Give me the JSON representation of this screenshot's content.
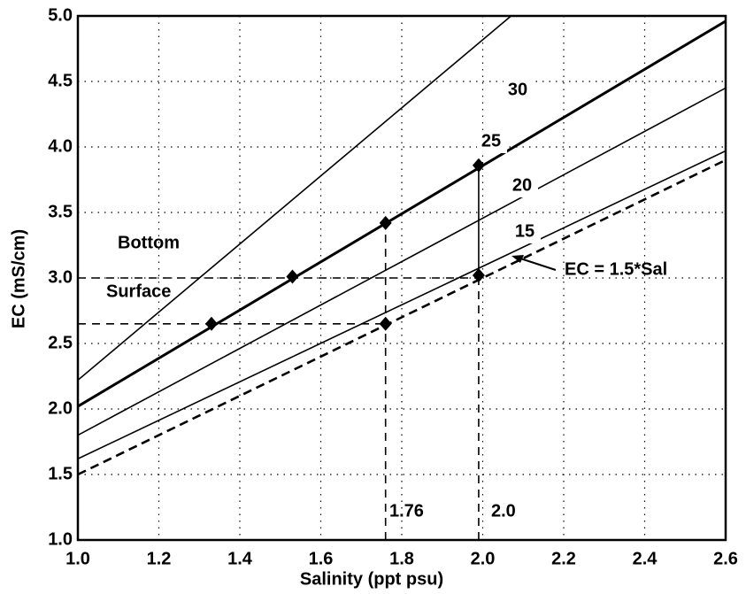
{
  "chart_data": {
    "type": "line",
    "x_label": "Salinity  (ppt psu)",
    "y_label": "EC (mS/cm)",
    "xlim": [
      1.0,
      2.6
    ],
    "ylim": [
      1.0,
      5.0
    ],
    "xticks": [
      {
        "value": 1.0,
        "label": "1.0"
      },
      {
        "value": 1.2,
        "label": "1.2"
      },
      {
        "value": 1.4,
        "label": "1.4"
      },
      {
        "value": 1.6,
        "label": "1.6"
      },
      {
        "value": 1.8,
        "label": "1.8"
      },
      {
        "value": 2.0,
        "label": "2.0"
      },
      {
        "value": 2.2,
        "label": "2.2"
      },
      {
        "value": 2.4,
        "label": "2.4"
      },
      {
        "value": 2.6,
        "label": "2.6"
      }
    ],
    "yticks": [
      {
        "value": 1.0,
        "label": "1.0"
      },
      {
        "value": 1.5,
        "label": "1.5"
      },
      {
        "value": 2.0,
        "label": "2.0"
      },
      {
        "value": 2.5,
        "label": "2.5"
      },
      {
        "value": 3.0,
        "label": "3.0"
      },
      {
        "value": 3.5,
        "label": "3.5"
      },
      {
        "value": 4.0,
        "label": "4.0"
      },
      {
        "value": 4.5,
        "label": "4.5"
      },
      {
        "value": 5.0,
        "label": "5.0"
      }
    ],
    "grid": true,
    "series": [
      {
        "name": "30",
        "color": "#000000",
        "x": [
          1.0,
          2.07
        ],
        "values": [
          2.22,
          5.0
        ],
        "style": "solid"
      },
      {
        "name": "25",
        "color": "#000000",
        "x": [
          1.0,
          2.6
        ],
        "values": [
          2.02,
          4.96
        ],
        "style": "thick"
      },
      {
        "name": "20",
        "color": "#000000",
        "x": [
          1.0,
          2.6
        ],
        "values": [
          1.8,
          4.45
        ],
        "style": "solid"
      },
      {
        "name": "15",
        "color": "#000000",
        "x": [
          1.0,
          2.6
        ],
        "values": [
          1.62,
          3.97
        ],
        "style": "solid"
      },
      {
        "name": "EC = 1.5*Sal",
        "color": "#000000",
        "x": [
          1.0,
          2.6
        ],
        "values": [
          1.5,
          3.9
        ],
        "style": "dashed"
      }
    ],
    "points": {
      "x": [
        1.33,
        1.53,
        1.76,
        1.99,
        1.76,
        1.99
      ],
      "values": [
        2.65,
        3.01,
        3.42,
        3.86,
        2.65,
        3.02
      ]
    },
    "guides": [
      {
        "x": [
          1.0,
          1.99
        ],
        "values": [
          3.0,
          3.0
        ],
        "style": "dashed"
      },
      {
        "x": [
          1.0,
          1.76
        ],
        "values": [
          2.65,
          2.65
        ],
        "style": "dashed"
      },
      {
        "x": [
          1.76,
          1.76
        ],
        "values": [
          1.0,
          3.42
        ],
        "style": "dashed"
      },
      {
        "x": [
          1.99,
          1.99
        ],
        "values": [
          1.0,
          3.02
        ],
        "style": "dashed"
      },
      {
        "x": [
          1.99,
          1.99
        ],
        "values": [
          3.02,
          3.86
        ],
        "style": "solid"
      }
    ],
    "annotations": [
      "Bottom",
      "Surface",
      "1.76",
      "2.0"
    ]
  }
}
